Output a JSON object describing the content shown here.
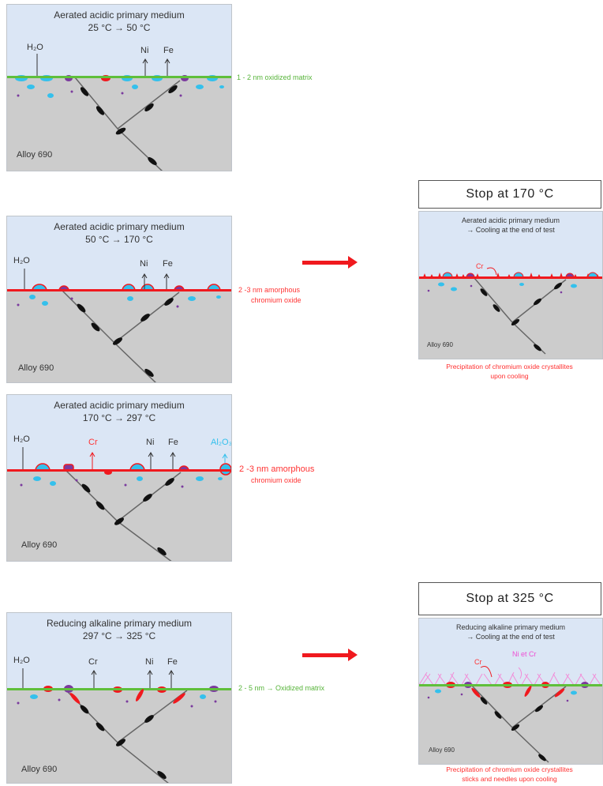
{
  "panels": [
    {
      "title": "Aerated acidic primary medium",
      "temp": "25 °C → 50 °C",
      "alloy": "Alloy 690",
      "labels": {
        "h2o": "H₂O",
        "ni": "Ni",
        "fe": "Fe"
      },
      "side_note": "1 - 2 nm oxidized matrix"
    },
    {
      "title": "Aerated acidic primary medium",
      "temp": "50 °C → 170 °C",
      "alloy": "Alloy 690",
      "labels": {
        "h2o": "H₂O",
        "ni": "Ni",
        "fe": "Fe"
      },
      "side_note_line1": "2 -3 nm amorphous",
      "side_note_line2": "chromium oxide"
    },
    {
      "title": "Aerated acidic primary medium",
      "temp": "170 °C → 297 °C",
      "alloy": "Alloy 690",
      "labels": {
        "h2o": "H₂O",
        "cr": "Cr",
        "ni": "Ni",
        "fe": "Fe",
        "al2o3": "Al₂O₃"
      },
      "side_note_line1": "2 -3 nm amorphous",
      "side_note_line2": "chromium oxide"
    },
    {
      "title": "Reducing alkaline primary medium",
      "temp": "297 °C → 325 °C",
      "alloy": "Alloy 690",
      "labels": {
        "h2o": "H₂O",
        "cr": "Cr",
        "ni": "Ni",
        "fe": "Fe"
      },
      "side_note": "2 - 5 nm → Oxidized matrix"
    }
  ],
  "stops": [
    {
      "heading": "Stop at 170 °C",
      "title": "Aerated acidic primary medium",
      "subtitle": "→ Cooling at the end of test",
      "cr_label": "Cr",
      "alloy": "Alloy 690",
      "caption_line1": "Precipitation of chromium oxide crystallites",
      "caption_line2": "upon cooling"
    },
    {
      "heading": "Stop at 325 °C",
      "title": "Reducing alkaline primary medium",
      "subtitle": "→ Cooling at the end of test",
      "cr_label": "Cr",
      "ni_cr_label": "Ni et Cr",
      "alloy": "Alloy 690",
      "caption_line1": "Precipitation of chromium oxide crystallites",
      "caption_line2": "sticks and needles upon cooling"
    }
  ],
  "colors": {
    "sky": "#dbe6f5",
    "alloy": "#cccccc",
    "green_layer": "#5fbf3b",
    "red_layer": "#f0191e",
    "cyan": "#34c0ec",
    "purple": "#7b3b9e",
    "needles": "#f28dd8"
  }
}
